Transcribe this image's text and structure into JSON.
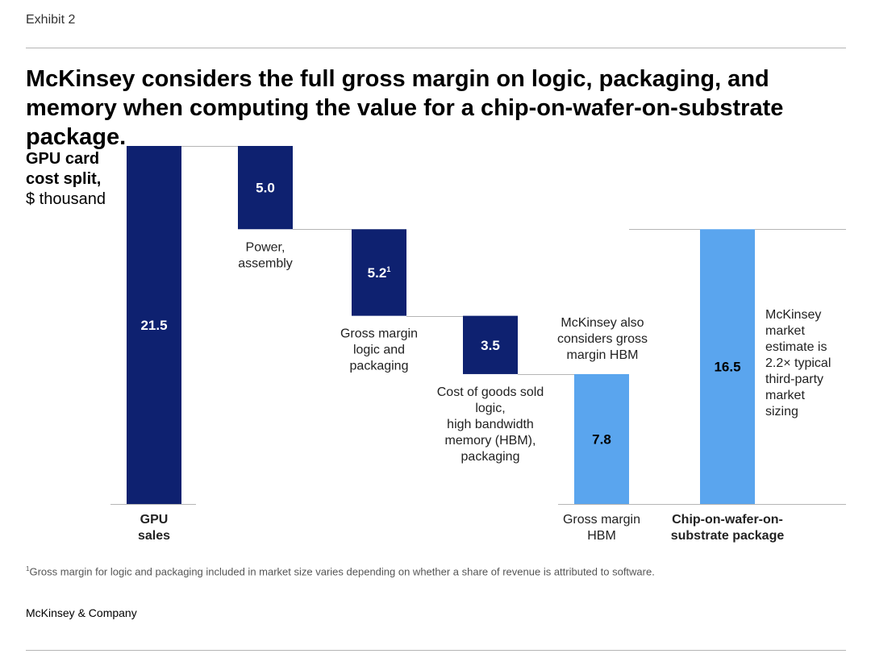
{
  "exhibit_label": "Exhibit 2",
  "title": "McKinsey considers the full gross margin on logic, packaging, and memory when computing the value for a chip-on-wafer-on-substrate package.",
  "unit_label": {
    "line1": "GPU card",
    "line2": "cost split,",
    "line3": "$ thousand"
  },
  "footnote": {
    "marker": "1",
    "text": "Gross margin for logic and packaging included in market size varies depending on whether a share of revenue is attributed to software."
  },
  "source": "McKinsey & Company",
  "colors": {
    "dark": "#0e2170",
    "light": "#5aa5ee",
    "connector": "#b5b5b5"
  },
  "chart_data": {
    "type": "bar",
    "subtype": "waterfall",
    "ylim": [
      0,
      21.5
    ],
    "bars": [
      {
        "label_lines": [
          "GPU",
          "sales"
        ],
        "label_bold": true,
        "label_position": "below",
        "value_label": "21.5",
        "bottom": 0,
        "top": 21.5,
        "color": "dark",
        "value_text_color": "#ffffff"
      },
      {
        "label_lines": [
          "Power,",
          "assembly"
        ],
        "label_bold": false,
        "label_position": "below-bar",
        "value_label": "5.0",
        "bottom": 16.5,
        "top": 21.5,
        "color": "dark",
        "value_text_color": "#ffffff"
      },
      {
        "label_lines": [
          "Gross margin",
          "logic and",
          "packaging"
        ],
        "label_bold": false,
        "label_position": "below-bar",
        "value_label": "5.2",
        "value_sup": "1",
        "bottom": 11.3,
        "top": 16.5,
        "color": "dark",
        "value_text_color": "#ffffff"
      },
      {
        "label_lines": [
          "Cost of goods sold",
          "logic,",
          "high bandwidth",
          "memory (HBM),",
          "packaging"
        ],
        "label_bold": false,
        "label_position": "below-bar",
        "value_label": "3.5",
        "bottom": 7.8,
        "top": 11.3,
        "color": "dark",
        "value_text_color": "#ffffff"
      },
      {
        "label_lines": [
          "Gross margin",
          "HBM"
        ],
        "label_bold": false,
        "label_position": "below",
        "value_label": "7.8",
        "bottom": 0,
        "top": 7.8,
        "color": "light",
        "value_text_color": "#000000",
        "annotation_lines": [
          "McKinsey also",
          "considers gross",
          "margin HBM"
        ]
      },
      {
        "label_lines": [
          "Chip-on-wafer-on-",
          "substrate package"
        ],
        "label_bold": true,
        "label_position": "below",
        "value_label": "16.5",
        "bottom": 0,
        "top": 16.5,
        "color": "light",
        "value_text_color": "#000000",
        "annotation_lines": [
          "McKinsey",
          "market",
          "estimate is",
          "2.2× typical",
          "third-party",
          "market",
          "sizing"
        ]
      }
    ]
  }
}
